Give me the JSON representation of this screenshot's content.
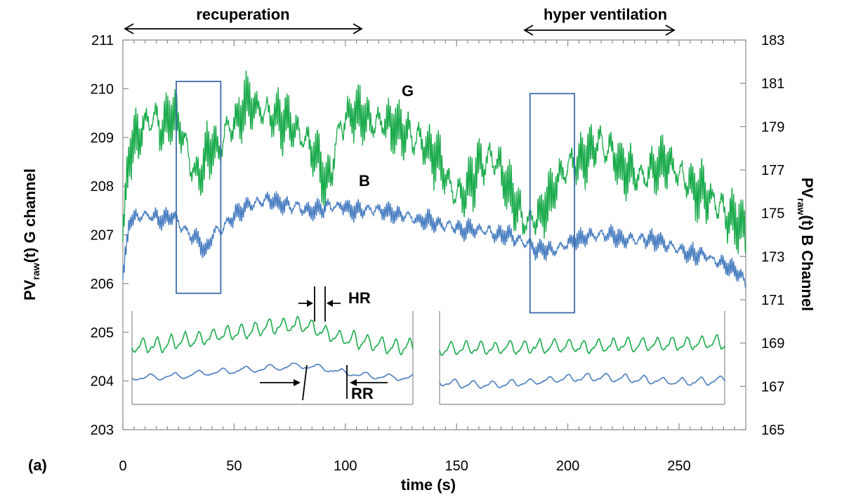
{
  "panel_label": "(a)",
  "chart_data": {
    "type": "line",
    "xlabel": "time (s)",
    "y_left_label_main": "PV",
    "y_left_label_sub": "raw",
    "y_left_label_rest": "(t) G channel",
    "y_right_label_main": "PV",
    "y_right_label_sub": "raw",
    "y_right_label_rest": "(t) B Channel",
    "xlim": [
      0,
      280
    ],
    "ylim_left": [
      203,
      211
    ],
    "ylim_right": [
      165,
      183
    ],
    "x_ticks": [
      "0",
      "50",
      "100",
      "150",
      "200",
      "250"
    ],
    "y_left_ticks": [
      "203",
      "204",
      "205",
      "206",
      "207",
      "208",
      "209",
      "210",
      "211"
    ],
    "y_right_ticks": [
      "165",
      "167",
      "169",
      "171",
      "173",
      "175",
      "177",
      "179",
      "181",
      "183"
    ],
    "series": [
      {
        "name": "G",
        "color": "#1aab4b",
        "axis": "left",
        "x": [
          0,
          3,
          8,
          12,
          18,
          22,
          26,
          30,
          33,
          36,
          40,
          43,
          47,
          52,
          56,
          60,
          65,
          70,
          75,
          80,
          84,
          88,
          91,
          94,
          98,
          103,
          108,
          113,
          118,
          123,
          128,
          132,
          137,
          142,
          147,
          152,
          157,
          162,
          167,
          171,
          175,
          180,
          184,
          188,
          193,
          198,
          203,
          208,
          213,
          218,
          223,
          228,
          233,
          238,
          243,
          248,
          253,
          258,
          263,
          268,
          272,
          276,
          280
        ],
        "base": [
          206.9,
          208.8,
          209.1,
          209.4,
          209.2,
          209.5,
          209.2,
          208.5,
          208.2,
          208.4,
          208.9,
          208.7,
          209.2,
          209.4,
          209.7,
          209.6,
          209.5,
          209.4,
          209.3,
          209.1,
          208.8,
          208.6,
          208.0,
          208.3,
          209.3,
          209.5,
          209.5,
          209.3,
          209.3,
          209.2,
          209.1,
          209.0,
          208.8,
          208.5,
          208.0,
          207.8,
          208.1,
          208.5,
          208.6,
          208.2,
          207.8,
          207.3,
          207.3,
          207.4,
          207.9,
          208.3,
          208.5,
          208.6,
          208.9,
          208.8,
          208.4,
          208.3,
          208.2,
          208.3,
          208.5,
          208.4,
          208.1,
          207.9,
          207.8,
          207.6,
          207.4,
          207.3,
          207.1
        ],
        "amp": 0.45
      },
      {
        "name": "B",
        "color": "#4a7fc1",
        "axis": "left",
        "x": [
          0,
          3,
          8,
          12,
          18,
          22,
          26,
          30,
          34,
          37,
          40,
          44,
          48,
          53,
          58,
          63,
          68,
          73,
          78,
          83,
          88,
          93,
          98,
          103,
          108,
          113,
          118,
          123,
          128,
          133,
          138,
          143,
          148,
          153,
          158,
          163,
          168,
          173,
          178,
          182,
          186,
          190,
          195,
          200,
          205,
          210,
          215,
          220,
          225,
          230,
          235,
          240,
          245,
          250,
          255,
          260,
          265,
          270,
          275,
          280
        ],
        "base": [
          206.1,
          207.3,
          207.4,
          207.4,
          207.3,
          207.4,
          207.2,
          207.0,
          206.9,
          206.6,
          207.0,
          207.1,
          207.3,
          207.5,
          207.6,
          207.7,
          207.7,
          207.6,
          207.6,
          207.5,
          207.5,
          207.6,
          207.6,
          207.5,
          207.5,
          207.5,
          207.5,
          207.4,
          207.4,
          207.3,
          207.3,
          207.2,
          207.2,
          207.1,
          207.1,
          207.1,
          207.0,
          207.0,
          206.9,
          206.8,
          206.7,
          206.7,
          206.7,
          206.8,
          206.9,
          207.0,
          207.0,
          207.0,
          206.9,
          206.9,
          206.9,
          206.9,
          206.8,
          206.7,
          206.6,
          206.6,
          206.5,
          206.4,
          206.3,
          206.0
        ],
        "amp": 0.16
      }
    ],
    "annotations": [
      {
        "text": "recuperation",
        "x_start": 0,
        "x_end": 109
      },
      {
        "text": "hyper ventilation",
        "x_start": 182,
        "x_end": 250
      },
      {
        "text": "G",
        "x": 130,
        "y": 209.9
      },
      {
        "text": "B",
        "x": 109,
        "y": 208.1
      }
    ],
    "boxes": [
      {
        "x_start": 24,
        "x_end": 44,
        "y_low": 205.8,
        "y_high": 210.15
      },
      {
        "x_start": 183,
        "x_end": 203,
        "y_low": 205.4,
        "y_high": 209.9
      }
    ],
    "insets": [
      {
        "name": "inset-left",
        "labels": [
          "HR",
          "RR"
        ]
      },
      {
        "name": "inset-right",
        "labels": []
      }
    ]
  }
}
